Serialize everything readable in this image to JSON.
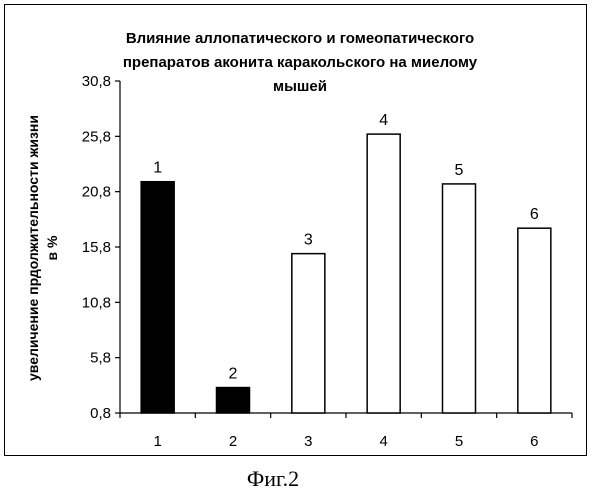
{
  "chart_data": {
    "type": "bar",
    "title_lines": [
      "Влияние аллопатического и гомеопатического",
      "препаратов аконита каракольского на миелому",
      "мышей"
    ],
    "ylabel_lines": [
      "увеличение прдолжительности жизни",
      "в %"
    ],
    "xlabel": "",
    "yticks": [
      "0,8",
      "5,8",
      "10,8",
      "15,8",
      "20,8",
      "25,8",
      "30,8"
    ],
    "ylim": [
      0.8,
      30.8
    ],
    "categories": [
      "1",
      "2",
      "3",
      "4",
      "5",
      "6"
    ],
    "values": [
      21.7,
      3.1,
      15.2,
      26.0,
      21.5,
      17.5
    ],
    "bar_labels": [
      "1",
      "2",
      "3",
      "4",
      "5",
      "6"
    ],
    "bar_fills": [
      "#000000",
      "#000000",
      "#ffffff",
      "#ffffff",
      "#ffffff",
      "#ffffff"
    ],
    "grid": false,
    "legend": "none"
  },
  "caption": "Фиг.2"
}
